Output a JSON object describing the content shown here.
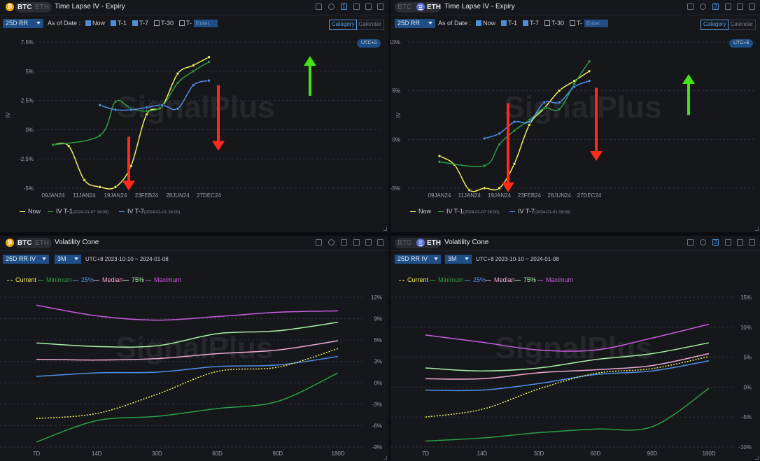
{
  "panels": [
    {
      "header": {
        "coin_active": "BTC",
        "coin_inactive": "ETH",
        "title": "Time Lapse IV - Expiry",
        "page_num": "1"
      },
      "toolbar": {
        "select": "25D RR",
        "as_of": "As of Date :",
        "opts": [
          "Now",
          "T-1",
          "T-7",
          "T-30",
          "T-"
        ],
        "checked": [
          true,
          true,
          true,
          false,
          false
        ],
        "enter": "Enter",
        "modes": [
          "Category",
          "Calendar"
        ]
      },
      "utc": "UTC+8",
      "watermark": "SignalPlus",
      "legend": [
        {
          "label": "Now",
          "sub": "",
          "color": "#f0f060"
        },
        {
          "label": "IV T-1",
          "sub": "(2024-01-07 16:00)",
          "color": "#2e9e47"
        },
        {
          "label": "IV T-7",
          "sub": "(2024-01-01 16:00)",
          "color": "#4f8fe8"
        }
      ]
    },
    {
      "header": {
        "coin_active": "ETH",
        "coin_inactive": "BTC",
        "title": "Time Lapse IV - Expiry",
        "page_num": "2"
      },
      "toolbar": {
        "select": "25D RR",
        "as_of": "As of Date :",
        "opts": [
          "Now",
          "T-1",
          "T-7",
          "T-30",
          "T-"
        ],
        "checked": [
          true,
          true,
          true,
          false,
          false
        ],
        "enter": "Enter",
        "modes": [
          "Category",
          "Calendar"
        ]
      },
      "utc": "UTC+8",
      "watermark": "SignalPlus",
      "legend": [
        {
          "label": "Now",
          "sub": "",
          "color": "#f0f060"
        },
        {
          "label": "IV T-1",
          "sub": "(2024-01-07 16:00)",
          "color": "#2e9e47"
        },
        {
          "label": "IV T-7",
          "sub": "(2024-01-01 16:00)",
          "color": "#4f8fe8"
        }
      ]
    },
    {
      "header": {
        "coin_active": "BTC",
        "coin_inactive": "ETH",
        "title": "Volatility Cone",
        "page_num": ""
      },
      "toolbar": {
        "select": "25D RR IV",
        "period": "3M",
        "range": "UTC+8 2023-10-10 ~ 2024-01-08"
      },
      "watermark": "SignalPlus",
      "legend": [
        {
          "label": "Current",
          "color": "#f0f060"
        },
        {
          "label": "Minimum",
          "color": "#2e9e47"
        },
        {
          "label": "25%",
          "color": "#4f8fe8"
        },
        {
          "label": "Median",
          "color": "#f0a8d0"
        },
        {
          "label": "75%",
          "color": "#a8f0a8"
        },
        {
          "label": "Maximum",
          "color": "#c85ce0"
        }
      ]
    },
    {
      "header": {
        "coin_active": "ETH",
        "coin_inactive": "BTC",
        "title": "Volatility Cone",
        "page_num": "2"
      },
      "toolbar": {
        "select": "25D RR IV",
        "period": "3M",
        "range": "UTC+8 2023-10-10 ~ 2024-01-08"
      },
      "watermark": "SignalPlus",
      "legend": [
        {
          "label": "Current",
          "color": "#f0f060"
        },
        {
          "label": "Minimum",
          "color": "#2e9e47"
        },
        {
          "label": "25%",
          "color": "#4f8fe8"
        },
        {
          "label": "Median",
          "color": "#f0a8d0"
        },
        {
          "label": "75%",
          "color": "#a8f0a8"
        },
        {
          "label": "Maximum",
          "color": "#c85ce0"
        }
      ]
    }
  ],
  "chart_data": [
    {
      "type": "line",
      "asset": "BTC",
      "ylabel": "IV",
      "x_labels": [
        "09JAN24",
        "11JAN24",
        "19JAN24",
        "23FEB24",
        "28JUN24",
        "27DEC24"
      ],
      "y_ticks": [
        "7.5%",
        "5%",
        "2.5%",
        "0%",
        "-2.5%",
        "-5%"
      ],
      "ylim": [
        -5,
        7.5
      ],
      "series": [
        {
          "name": "Now",
          "color": "#f0f060",
          "points": [
            [
              0,
              -1.3
            ],
            [
              0.5,
              -1.4
            ],
            [
              1.0,
              -4.3
            ],
            [
              1.5,
              -4.9
            ],
            [
              2.0,
              -4.9
            ],
            [
              2.5,
              -3.1
            ],
            [
              3.0,
              1.3
            ],
            [
              3.5,
              2.0
            ],
            [
              4.0,
              4.8
            ],
            [
              4.5,
              5.5
            ],
            [
              5.0,
              6.2
            ]
          ]
        },
        {
          "name": "IV T-1",
          "color": "#2e9e47",
          "points": [
            [
              0,
              -1.3
            ],
            [
              1.5,
              -0.5
            ],
            [
              2.0,
              2.4
            ],
            [
              2.5,
              1.8
            ],
            [
              3.0,
              1.6
            ],
            [
              3.5,
              2.0
            ],
            [
              4.0,
              4.0
            ],
            [
              4.5,
              5.0
            ],
            [
              5.0,
              5.8
            ]
          ]
        },
        {
          "name": "IV T-7",
          "color": "#4f8fe8",
          "points": [
            [
              1.5,
              2.1
            ],
            [
              2.0,
              1.7
            ],
            [
              2.5,
              1.7
            ],
            [
              3.0,
              1.9
            ],
            [
              3.5,
              2.1
            ],
            [
              4.0,
              1.8
            ],
            [
              4.5,
              3.8
            ],
            [
              5.0,
              4.2
            ]
          ]
        }
      ]
    },
    {
      "type": "line",
      "asset": "ETH",
      "ylabel": "IV",
      "x_labels": [
        "09JAN24",
        "11JAN24",
        "19JAN24",
        "23FEB24",
        "28JUN24",
        "27DEC24"
      ],
      "y_ticks": [
        "10%",
        "5%",
        "0%",
        "-5%"
      ],
      "ylim": [
        -5,
        10
      ],
      "series": [
        {
          "name": "Now",
          "color": "#f0f060",
          "points": [
            [
              0,
              -1.7
            ],
            [
              0.5,
              -2.6
            ],
            [
              1.0,
              -5.2
            ],
            [
              1.5,
              -5.0
            ],
            [
              2.0,
              -5.0
            ],
            [
              2.5,
              -2.5
            ],
            [
              3.0,
              1.5
            ],
            [
              3.5,
              3.2
            ],
            [
              4.0,
              5.0
            ],
            [
              4.5,
              6.0
            ],
            [
              5.0,
              7.0
            ]
          ]
        },
        {
          "name": "IV T-1",
          "color": "#2e9e47",
          "points": [
            [
              0,
              -2.3
            ],
            [
              1.5,
              -2.7
            ],
            [
              2.0,
              -0.5
            ],
            [
              2.5,
              0.9
            ],
            [
              3.0,
              2.0
            ],
            [
              3.5,
              3.2
            ],
            [
              4.0,
              3.1
            ],
            [
              4.5,
              5.7
            ],
            [
              5.0,
              8.0
            ]
          ]
        },
        {
          "name": "IV T-7",
          "color": "#4f8fe8",
          "points": [
            [
              1.5,
              0.1
            ],
            [
              2.0,
              0.6
            ],
            [
              2.5,
              1.8
            ],
            [
              3.0,
              1.8
            ],
            [
              3.5,
              3.8
            ],
            [
              4.0,
              3.8
            ],
            [
              4.5,
              5.4
            ],
            [
              5.0,
              6.0
            ]
          ]
        }
      ]
    },
    {
      "type": "line",
      "asset": "BTC",
      "categories": [
        "7D",
        "14D",
        "30D",
        "60D",
        "90D",
        "180D"
      ],
      "y_ticks": [
        "12%",
        "9%",
        "6%",
        "3%",
        "0%",
        "-3%",
        "-6%",
        "-9%"
      ],
      "ylim": [
        -9,
        12
      ],
      "series": [
        {
          "name": "Maximum",
          "color": "#c85ce0",
          "values": [
            10.9,
            9.4,
            8.8,
            9.3,
            9.9,
            10.1
          ]
        },
        {
          "name": "75%",
          "color": "#a8f0a8",
          "values": [
            5.6,
            5.1,
            5.2,
            6.9,
            7.3,
            8.5
          ]
        },
        {
          "name": "Median",
          "color": "#f0a8d0",
          "values": [
            3.3,
            3.2,
            3.4,
            4.1,
            4.6,
            5.9
          ]
        },
        {
          "name": "25%",
          "color": "#4f8fe8",
          "values": [
            0.9,
            1.4,
            1.5,
            2.3,
            2.5,
            3.7
          ]
        },
        {
          "name": "Current",
          "color": "#f0f060",
          "dashed": true,
          "values": [
            -5.0,
            -4.3,
            -1.6,
            1.6,
            2.2,
            4.8
          ]
        },
        {
          "name": "Minimum",
          "color": "#2e9e47",
          "values": [
            -8.3,
            -5.3,
            -4.7,
            -3.6,
            -2.6,
            1.4
          ]
        }
      ]
    },
    {
      "type": "line",
      "asset": "ETH",
      "categories": [
        "7D",
        "14D",
        "30D",
        "60D",
        "90D",
        "180D"
      ],
      "y_ticks": [
        "15%",
        "10%",
        "5%",
        "0%",
        "-5%",
        "-10%"
      ],
      "ylim": [
        -10,
        15
      ],
      "series": [
        {
          "name": "Maximum",
          "color": "#c85ce0",
          "values": [
            8.7,
            7.5,
            6.2,
            6.2,
            8.2,
            10.5
          ]
        },
        {
          "name": "75%",
          "color": "#a8f0a8",
          "values": [
            3.2,
            2.7,
            3.2,
            4.6,
            5.6,
            7.4
          ]
        },
        {
          "name": "Median",
          "color": "#f0a8d0",
          "values": [
            1.4,
            1.4,
            2.4,
            2.9,
            3.6,
            5.6
          ]
        },
        {
          "name": "25%",
          "color": "#4f8fe8",
          "values": [
            -0.5,
            -0.5,
            0.6,
            2.1,
            2.7,
            4.4
          ]
        },
        {
          "name": "Current",
          "color": "#f0f060",
          "dashed": true,
          "values": [
            -5.0,
            -3.7,
            -0.3,
            2.3,
            3.1,
            5.1
          ]
        },
        {
          "name": "Minimum",
          "color": "#2e9e47",
          "values": [
            -9.0,
            -8.5,
            -7.6,
            -7.0,
            -6.6,
            -0.2
          ]
        }
      ]
    }
  ]
}
